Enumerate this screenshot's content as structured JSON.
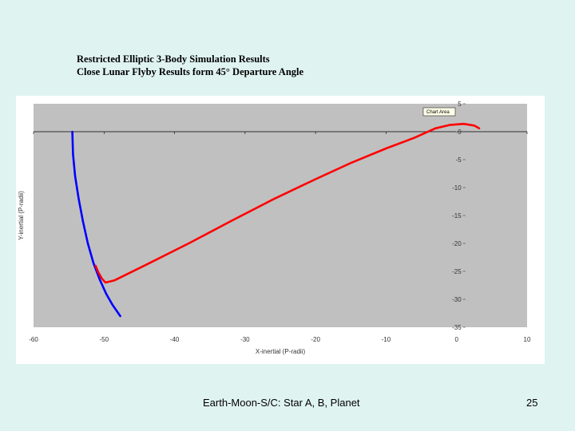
{
  "slide": {
    "title_line1": "Restricted Elliptic 3-Body Simulation Results",
    "title_line2": "Close Lunar Flyby Results form 45° Departure Angle",
    "footer": "Earth-Moon-S/C: Star A, B, Planet",
    "page_number": "25"
  },
  "chart_data": {
    "type": "line",
    "title": "",
    "xlabel": "X-inertial (P-radii)",
    "ylabel": "Y-inertial (P-radii)",
    "xlim": [
      -60,
      10
    ],
    "ylim": [
      -35,
      5
    ],
    "x_ticks": [
      {
        "value": -60,
        "label": "-60"
      },
      {
        "value": -50,
        "label": "-50"
      },
      {
        "value": -40,
        "label": "-40"
      },
      {
        "value": -30,
        "label": "-30"
      },
      {
        "value": -20,
        "label": "-20"
      },
      {
        "value": -10,
        "label": "-10"
      },
      {
        "value": 0,
        "label": "0"
      },
      {
        "value": 10,
        "label": "10"
      }
    ],
    "y_ticks": [
      {
        "value": 5,
        "label": "5"
      },
      {
        "value": 0,
        "label": "0"
      },
      {
        "value": -5,
        "label": "-5"
      },
      {
        "value": -10,
        "label": "-10"
      },
      {
        "value": -15,
        "label": "-15"
      },
      {
        "value": -20,
        "label": "-20"
      },
      {
        "value": -25,
        "label": "-25"
      },
      {
        "value": -30,
        "label": "-30"
      },
      {
        "value": -35,
        "label": "-35"
      }
    ],
    "grid": false,
    "plot_background": "#c0c0c0",
    "chart_area_label": "Chart Area",
    "series": [
      {
        "color": "#0000ff",
        "x": [
          -54.5,
          -54.4,
          -54.1,
          -53.6,
          -53.0,
          -52.3,
          -51.5,
          -50.6,
          -49.7,
          -48.8,
          -47.7
        ],
        "y": [
          0,
          -4,
          -8,
          -12,
          -16,
          -20,
          -23.5,
          -26.5,
          -29,
          -31,
          -33
        ]
      },
      {
        "color": "#ff0000",
        "x": [
          -51.2,
          -50.8,
          -50.3,
          -49.8,
          -48.5,
          -44,
          -38,
          -32,
          -26,
          -20,
          -15,
          -10,
          -6,
          -3,
          -1,
          1,
          2.5,
          3.2
        ],
        "y": [
          -24,
          -25.2,
          -26.3,
          -27,
          -26.6,
          -23.8,
          -20,
          -16,
          -12.1,
          -8.5,
          -5.6,
          -3,
          -1.1,
          0.6,
          1.2,
          1.4,
          1.1,
          0.6
        ]
      }
    ]
  }
}
